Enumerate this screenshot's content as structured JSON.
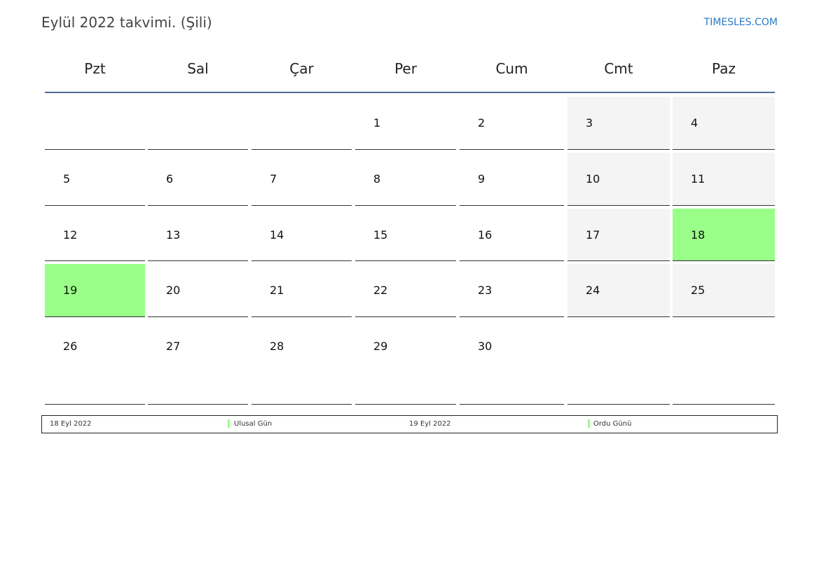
{
  "title": "Eylül 2022 takvimi. (Şili)",
  "brand": "TIMESLES.COM",
  "weekdays": [
    "Pzt",
    "Sal",
    "Çar",
    "Per",
    "Cum",
    "Cmt",
    "Paz"
  ],
  "first_weekday_index": 3,
  "days_in_month": 30,
  "holiday_days": [
    18,
    19
  ],
  "colors": {
    "holiday": "#99ff88",
    "weekend": "#f4f4f4",
    "header_line": "#4f6e9a",
    "brand": "#2a7ac8"
  },
  "legend": [
    {
      "date": "18 Eyl 2022",
      "name": "Ulusal Gün"
    },
    {
      "date": "19 Eyl 2022",
      "name": "Ordu Günü"
    }
  ]
}
